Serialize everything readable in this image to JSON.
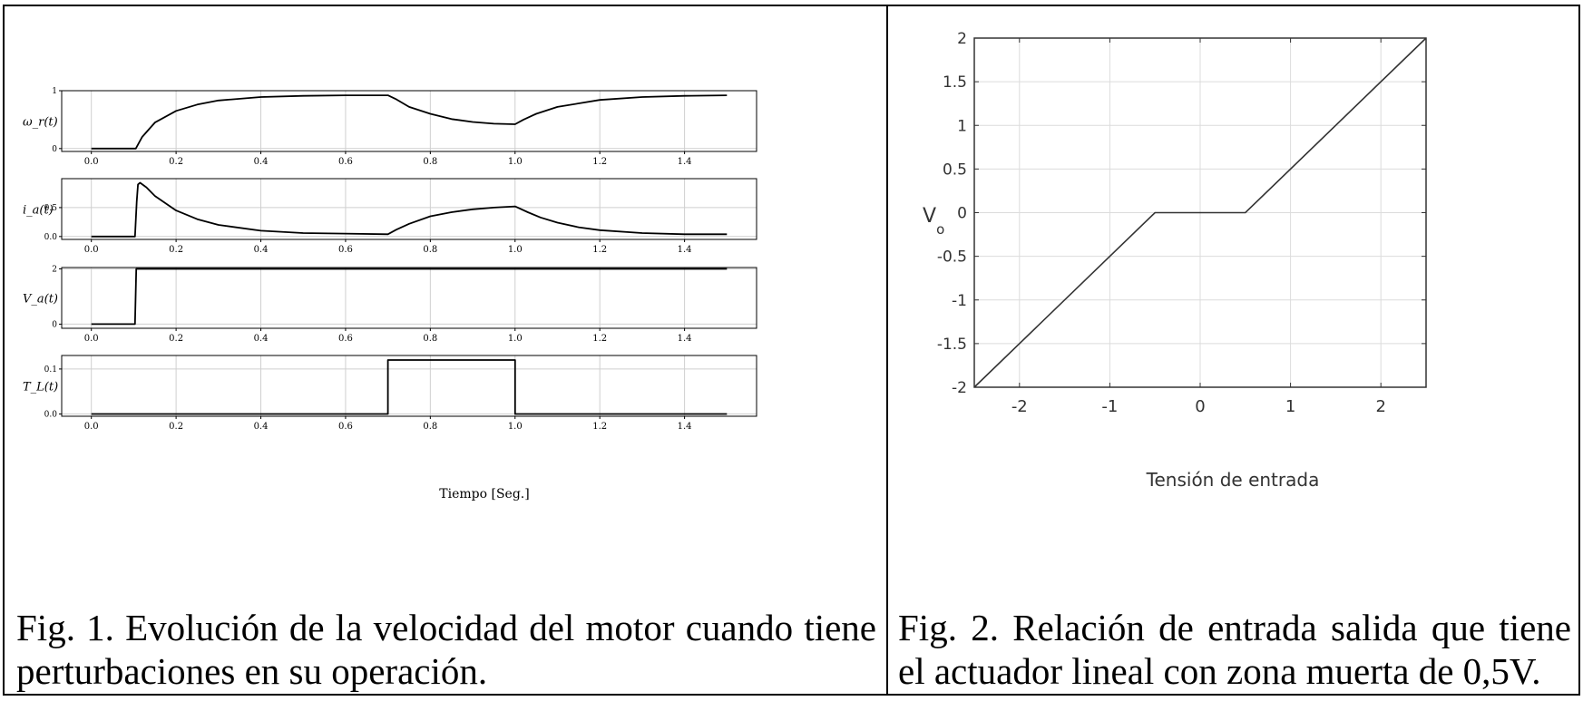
{
  "captions": {
    "fig1": "Fig. 1. Evolución de la velocidad del motor cuando tiene perturbaciones en su operación.",
    "fig2": "Fig. 2. Relación de entrada salida que tiene el actuador lineal con zona muerta de 0,5V."
  },
  "chart_data": [
    {
      "type": "line",
      "title": "",
      "xlabel": "Tiempo [Seg.]",
      "xticks": [
        "0.0",
        "0.2",
        "0.4",
        "0.6",
        "0.8",
        "1.0",
        "1.2",
        "1.4"
      ],
      "xlim": [
        -0.07,
        1.57
      ],
      "grid": true,
      "subplots": [
        {
          "ylabel": "ω_r(t)",
          "yticks": [
            "0",
            "1"
          ],
          "ylim": [
            -0.05,
            1.0
          ],
          "series": [
            {
              "x": [
                0.0,
                0.105,
                0.12,
                0.15,
                0.2,
                0.25,
                0.3,
                0.4,
                0.5,
                0.6,
                0.7,
                0.72,
                0.75,
                0.8,
                0.85,
                0.9,
                0.95,
                1.0,
                1.02,
                1.05,
                1.1,
                1.2,
                1.3,
                1.4,
                1.5
              ],
              "y": [
                0.0,
                0.0,
                0.2,
                0.45,
                0.65,
                0.76,
                0.83,
                0.89,
                0.91,
                0.92,
                0.92,
                0.85,
                0.72,
                0.6,
                0.51,
                0.46,
                0.43,
                0.42,
                0.5,
                0.6,
                0.72,
                0.84,
                0.89,
                0.91,
                0.92
              ]
            }
          ]
        },
        {
          "ylabel": "i_a(t)",
          "yticks": [
            "0.0",
            "0.5"
          ],
          "ylim": [
            -0.05,
            1.0
          ],
          "series": [
            {
              "x": [
                0.0,
                0.103,
                0.107,
                0.11,
                0.115,
                0.13,
                0.15,
                0.2,
                0.25,
                0.3,
                0.4,
                0.5,
                0.6,
                0.7,
                0.72,
                0.75,
                0.8,
                0.85,
                0.9,
                0.95,
                1.0,
                1.03,
                1.06,
                1.1,
                1.15,
                1.2,
                1.3,
                1.4,
                1.5
              ],
              "y": [
                0.0,
                0.0,
                0.6,
                0.9,
                0.93,
                0.85,
                0.7,
                0.45,
                0.3,
                0.2,
                0.1,
                0.06,
                0.05,
                0.04,
                0.12,
                0.22,
                0.35,
                0.42,
                0.47,
                0.5,
                0.52,
                0.42,
                0.33,
                0.24,
                0.16,
                0.11,
                0.06,
                0.04,
                0.04
              ]
            }
          ]
        },
        {
          "ylabel": "V_a(t)",
          "yticks": [
            "0",
            "2"
          ],
          "ylim": [
            -0.15,
            2.05
          ],
          "series": [
            {
              "x": [
                0.0,
                0.103,
                0.106,
                1.5
              ],
              "y": [
                0.0,
                0.0,
                2.0,
                2.0
              ]
            }
          ]
        },
        {
          "ylabel": "T_L(t)",
          "yticks": [
            "0.0",
            "0.1"
          ],
          "ylim": [
            -0.005,
            0.13
          ],
          "series": [
            {
              "x": [
                0.0,
                0.7,
                0.7,
                1.0,
                1.0,
                1.5
              ],
              "y": [
                0.0,
                0.0,
                0.12,
                0.12,
                0.0,
                0.0
              ]
            }
          ]
        }
      ]
    },
    {
      "type": "line",
      "title": "",
      "xlabel": "Tensión de entrada",
      "ylabel": "V",
      "ylabel_sub": "o",
      "xlim": [
        -2.5,
        2.5
      ],
      "ylim": [
        -2,
        2
      ],
      "xticks": [
        "-2",
        "-1",
        "0",
        "1",
        "2"
      ],
      "yticks": [
        "-2",
        "-1.5",
        "-1",
        "-0.5",
        "0",
        "0.5",
        "1",
        "1.5",
        "2"
      ],
      "grid": true,
      "series": [
        {
          "x": [
            -2.5,
            -0.5,
            0.5,
            2.5
          ],
          "y": [
            -2.0,
            0.0,
            0.0,
            2.0
          ]
        }
      ]
    }
  ]
}
